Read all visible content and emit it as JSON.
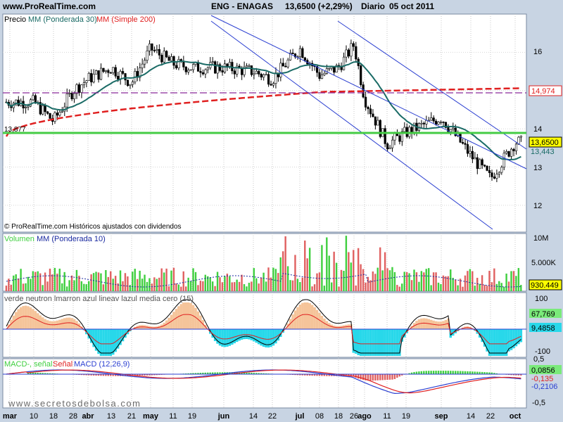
{
  "header": {
    "site": "www.ProRealTime.com",
    "instrument": "ENG - ENAGAS",
    "quote": "13,6500 (+2,29%)",
    "period": "Diario",
    "date": "05 oct 2011"
  },
  "colors": {
    "price_bg": "#ffffff",
    "panel_bg": "#ffffff",
    "frame": "#c8d4e3",
    "ma30": "#1a6b66",
    "ma200": "#e02020",
    "channel": "#2b3fd1",
    "hline_green": "#44cc44",
    "hline_purple": "#8a2a9a",
    "vol_up": "#3fcf3f",
    "vol_down": "#e06060",
    "vol_avg": "#1a2aa0",
    "osc_up": "#f5c49a",
    "osc_down": "#28d8ea",
    "osc_green": "#58e058",
    "macd_hist": "#3fcf3f",
    "macd_line": "#2b3fd1",
    "signal_line": "#e02020"
  },
  "price_panel": {
    "legend": {
      "precio": "Precio",
      "ma30": "MM (Ponderada 30)",
      "ma200": "MM (Simple 200)"
    },
    "y_ticks": [
      "16",
      "15",
      "14",
      "13",
      "12"
    ],
    "left_label": "13,877",
    "tags": {
      "ma200_value": "14,974",
      "last_price": "13,6500",
      "ma30_value": "13,443"
    },
    "watermark": "© ProRealTime.com  Históricos ajustados con dividendos"
  },
  "volume_panel": {
    "legend": {
      "title": "Volumen",
      "ma": "MM (Ponderada 10)"
    },
    "y_ticks": [
      "10M",
      "5.000K"
    ],
    "last_value": "930.449"
  },
  "osc_panel": {
    "legend": "verde neutron lmarron azul lineav lazul media cero (15)",
    "y_ticks": [
      "100",
      "-100"
    ],
    "tags": {
      "upper": "67,769",
      "lower": "9,4858"
    }
  },
  "macd_panel": {
    "legend": {
      "a": "MACD-, señal",
      "b": "Señal",
      "c": "MACD (12,26,9)"
    },
    "y_ticks": [
      "0,5",
      "-0,5"
    ],
    "tags": {
      "a": "0,0856",
      "b": "-0,135",
      "c": "-0,2106"
    }
  },
  "x_axis": {
    "labels": [
      "mar",
      "10",
      "18",
      "28",
      "abr",
      "13",
      "21",
      "may",
      "11",
      "19",
      "jun",
      "14",
      "22",
      "jul",
      "08",
      "18",
      "26",
      "ago",
      "11",
      "19",
      "sep",
      "14",
      "22",
      "oct"
    ]
  },
  "footer": "www.secretosdebolsa.com",
  "chart_data": {
    "type": "candlestick",
    "title": "ENG - ENAGAS  13,6500 (+2,29%)  Diario  05 oct 2011",
    "ylim": [
      11.3,
      17.0
    ],
    "grid": true,
    "support_line": 13.877,
    "purple_dashed_line": 14.974,
    "series": [
      {
        "name": "MM (Ponderada 30)",
        "last": 13.443
      },
      {
        "name": "MM (Simple 200)",
        "last": 14.974
      }
    ],
    "last_close": 13.65,
    "keypoints": [
      {
        "x": "mar",
        "close": 14.7
      },
      {
        "x": "10",
        "close": 14.7
      },
      {
        "x": "18",
        "close": 14.2
      },
      {
        "x": "28",
        "close": 15.0
      },
      {
        "x": "abr",
        "close": 15.3
      },
      {
        "x": "13",
        "close": 15.6
      },
      {
        "x": "21",
        "close": 15.2
      },
      {
        "x": "may",
        "close": 16.1
      },
      {
        "x": "11",
        "close": 15.7
      },
      {
        "x": "19",
        "close": 15.6
      },
      {
        "x": "jun",
        "close": 15.6
      },
      {
        "x": "14",
        "close": 15.5
      },
      {
        "x": "22",
        "close": 15.3
      },
      {
        "x": "jul",
        "close": 16.1
      },
      {
        "x": "08",
        "close": 15.4
      },
      {
        "x": "18",
        "close": 15.6
      },
      {
        "x": "26",
        "close": 16.2
      },
      {
        "x": "ago",
        "close": 14.8
      },
      {
        "x": "11",
        "close": 13.6
      },
      {
        "x": "19",
        "close": 13.9
      },
      {
        "x": "sep",
        "close": 14.3
      },
      {
        "x": "14",
        "close": 13.3
      },
      {
        "x": "22",
        "close": 12.7
      },
      {
        "x": "oct",
        "close": 13.65
      }
    ]
  }
}
